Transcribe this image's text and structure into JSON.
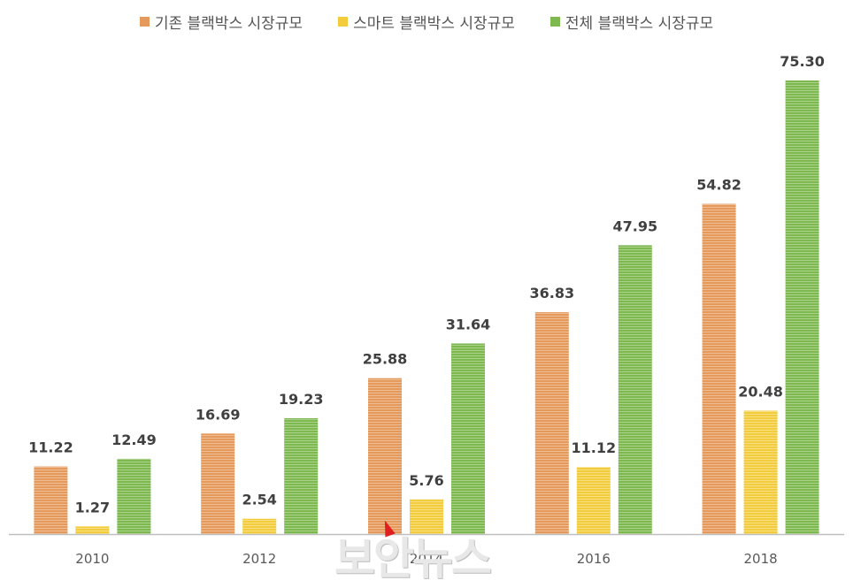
{
  "legend": [
    {
      "label": "기존 블랙박스 시장규모",
      "color": "#E59A5C"
    },
    {
      "label": "스마트 블랙박스 시장규모",
      "color": "#F2CC3D"
    },
    {
      "label": "전체 블랙박스 시장규모",
      "color": "#7DB94F"
    }
  ],
  "watermark": "보안뉴스",
  "chart_data": {
    "type": "bar",
    "categories": [
      "2010",
      "2012",
      "2014",
      "2016",
      "2018"
    ],
    "series": [
      {
        "name": "기존 블랙박스 시장규모",
        "values": [
          11.22,
          16.69,
          25.88,
          36.83,
          54.82
        ],
        "color": "#E59A5C"
      },
      {
        "name": "스마트 블랙박스 시장규모",
        "values": [
          1.27,
          2.54,
          5.76,
          11.12,
          20.48
        ],
        "color": "#F2CC3D"
      },
      {
        "name": "전체 블랙박스 시장규모",
        "values": [
          12.49,
          19.23,
          31.64,
          47.95,
          75.3
        ],
        "color": "#7DB94F"
      }
    ],
    "ylim": [
      0,
      75.3
    ],
    "grid": false,
    "legend_position": "top",
    "data_labels": true
  }
}
